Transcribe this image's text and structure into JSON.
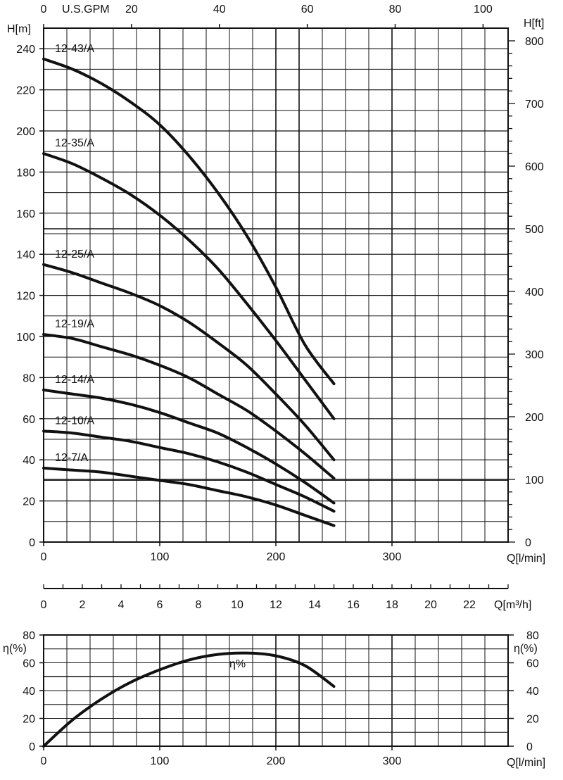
{
  "chart_data": [
    {
      "type": "line",
      "title": "",
      "x_axis": {
        "label": "Q[l/min]",
        "ticks": [
          "0",
          "100",
          "200",
          "300"
        ],
        "range": [
          0,
          400
        ]
      },
      "top_axis": {
        "label": "U.S.GPM",
        "ticks": [
          "0",
          "20",
          "40",
          "60",
          "80",
          "100"
        ],
        "range": [
          0,
          105.7
        ]
      },
      "y_axis": {
        "label": "H[m]",
        "ticks": [
          "0",
          "20",
          "40",
          "60",
          "80",
          "100",
          "120",
          "140",
          "160",
          "180",
          "200",
          "220",
          "240"
        ],
        "range": [
          0,
          250
        ]
      },
      "y_axis_right": {
        "label": "H[ft]",
        "ticks": [
          "0",
          "100",
          "200",
          "300",
          "400",
          "500",
          "600",
          "700",
          "800"
        ],
        "range": [
          0,
          820
        ]
      },
      "grid": true,
      "series": [
        {
          "name": "12-43/A",
          "x": [
            0,
            25,
            50,
            75,
            100,
            125,
            150,
            175,
            200,
            225,
            250
          ],
          "y": [
            235,
            230,
            223,
            214,
            203,
            188,
            170,
            149,
            124,
            96,
            77
          ]
        },
        {
          "name": "12-35/A",
          "x": [
            0,
            25,
            50,
            75,
            100,
            125,
            150,
            175,
            200,
            225,
            250
          ],
          "y": [
            189,
            184,
            177,
            169,
            159,
            147,
            133,
            116,
            98,
            79,
            60
          ]
        },
        {
          "name": "12-25/A",
          "x": [
            0,
            25,
            50,
            75,
            100,
            125,
            150,
            175,
            200,
            225,
            250
          ],
          "y": [
            135,
            131,
            126,
            121,
            115,
            107,
            97,
            86,
            72,
            57,
            40
          ]
        },
        {
          "name": "12-19/A",
          "x": [
            0,
            25,
            50,
            75,
            100,
            125,
            150,
            175,
            200,
            225,
            250
          ],
          "y": [
            101,
            99,
            95,
            91,
            86,
            80,
            72,
            64,
            54,
            43,
            31
          ]
        },
        {
          "name": "12-14/A",
          "x": [
            0,
            25,
            50,
            75,
            100,
            125,
            150,
            175,
            200,
            225,
            250
          ],
          "y": [
            74,
            72,
            70,
            67,
            63,
            58,
            53,
            46,
            38,
            29,
            19
          ]
        },
        {
          "name": "12-10/A",
          "x": [
            0,
            25,
            50,
            75,
            100,
            125,
            150,
            175,
            200,
            225,
            250
          ],
          "y": [
            54,
            53,
            51,
            49,
            46,
            43,
            39,
            34,
            28,
            22,
            15
          ]
        },
        {
          "name": "12-7/A",
          "x": [
            0,
            25,
            50,
            75,
            100,
            125,
            150,
            175,
            200,
            225,
            250
          ],
          "y": [
            36,
            35,
            34,
            32,
            30,
            28,
            25,
            22,
            18,
            13,
            8
          ]
        }
      ]
    },
    {
      "type": "axis",
      "label": "Q[m³/h]",
      "ticks": [
        "0",
        "2",
        "4",
        "6",
        "8",
        "10",
        "12",
        "14",
        "16",
        "18",
        "20",
        "22"
      ],
      "range": [
        0,
        24
      ]
    },
    {
      "type": "line",
      "title": "",
      "x_axis": {
        "label": "Q[l/min]",
        "ticks": [
          "0",
          "100",
          "200",
          "300"
        ],
        "range": [
          0,
          400
        ]
      },
      "y_axis": {
        "label": "η(%)",
        "ticks": [
          "0",
          "20",
          "40",
          "60",
          "80"
        ],
        "range": [
          0,
          80
        ]
      },
      "y_axis_right": {
        "label": "η(%)",
        "ticks": [
          "0",
          "20",
          "40",
          "60",
          "80"
        ],
        "range": [
          0,
          80
        ]
      },
      "grid": true,
      "series": [
        {
          "name": "η%",
          "x": [
            0,
            25,
            50,
            75,
            100,
            125,
            150,
            175,
            200,
            225,
            250
          ],
          "y": [
            0,
            19,
            34,
            46,
            55,
            62,
            66,
            67,
            65,
            58,
            43
          ]
        }
      ]
    }
  ]
}
